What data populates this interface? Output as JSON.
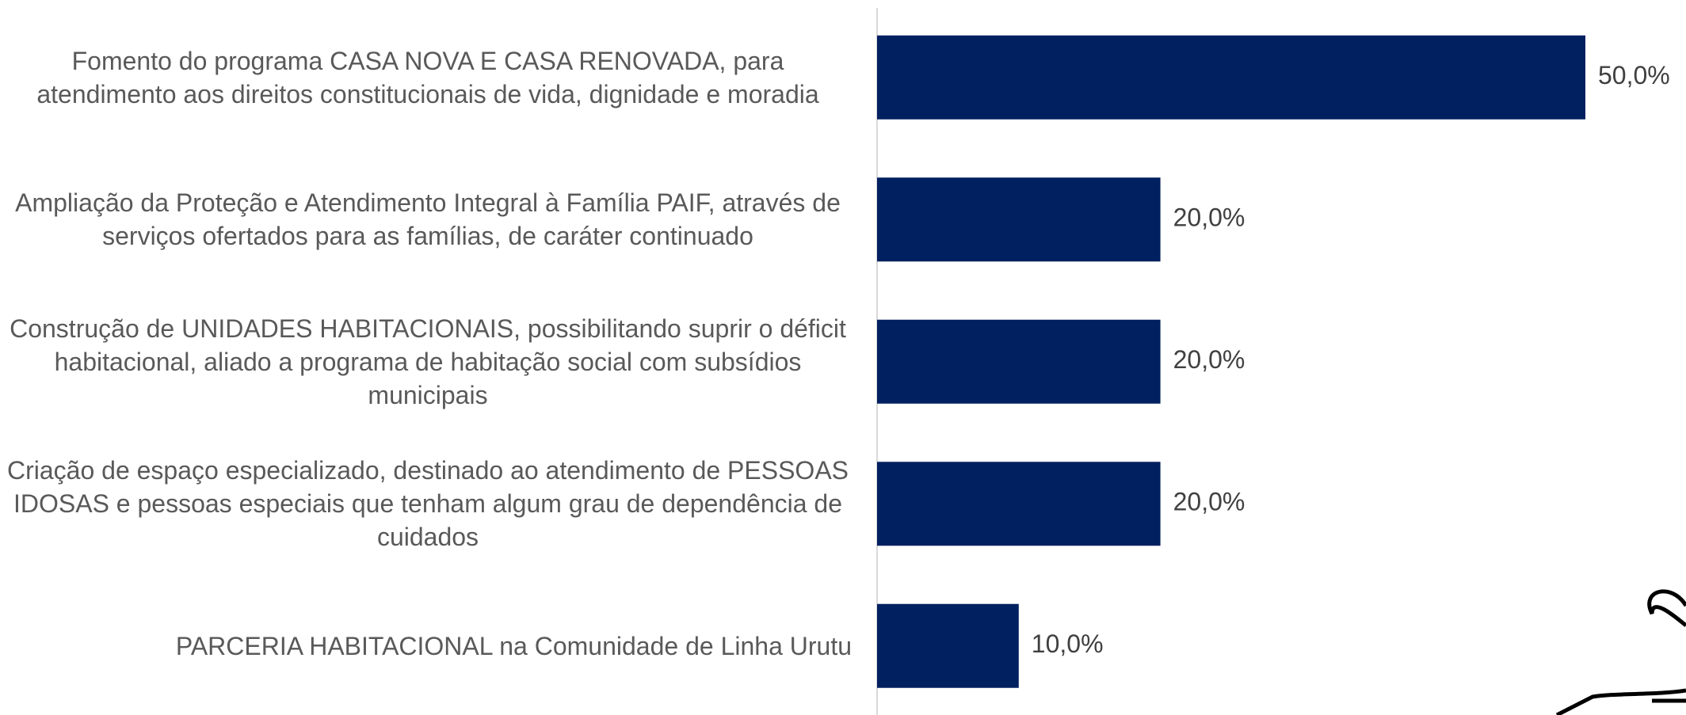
{
  "chart_data": {
    "type": "barh",
    "categories": [
      "Fomento do programa CASA NOVA E CASA RENOVADA, para atendimento aos direitos constitucionais de vida, dignidade e moradia",
      "Ampliação da Proteção e Atendimento Integral à Família PAIF, através de serviços ofertados para as famílias, de caráter continuado",
      "Construção de UNIDADES HABITACIONAIS, possibilitando suprir o déficit habitacional, aliado a programa de habitação social com subsídios municipais",
      "Criação de espaço especializado, destinado ao atendimento de PESSOAS IDOSAS e pessoas especiais que tenham algum grau de dependência de cuidados",
      "PARCERIA HABITACIONAL na Comunidade de Linha Urutu"
    ],
    "values": [
      50,
      20,
      20,
      20,
      10
    ],
    "value_labels": [
      "50,0%",
      "20,0%",
      "20,0%",
      "20,0%",
      "10,0%"
    ],
    "color": "#002060"
  }
}
